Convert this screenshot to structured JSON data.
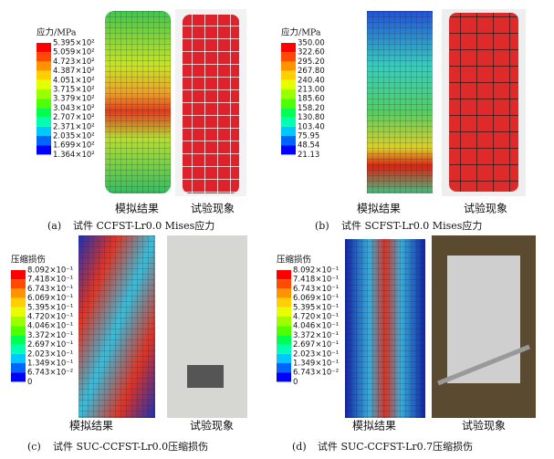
{
  "panels": [
    {
      "legend_title": "应力/MPa",
      "legend_labels": [
        "5.395×10²",
        "5.059×10²",
        "4.723×10²",
        "4.387×10²",
        "4.051×10²",
        "3.715×10²",
        "3.379×10²",
        "3.043×10²",
        "2.707×10²",
        "2.371×10²",
        "2.035×10²",
        "1.699×10²",
        "1.364×10²"
      ],
      "left_label": "模拟结果",
      "right_label": "试验现象",
      "caption_tag": "(a)",
      "caption": "试件 CCFST-Lr0.0 Mises应力"
    },
    {
      "legend_title": "应力/MPa",
      "legend_labels": [
        "350.00",
        "322.60",
        "295.20",
        "267.80",
        "240.40",
        "213.00",
        "185.60",
        "158.20",
        "130.80",
        "103.40",
        "75.95",
        "48.54",
        "21.13"
      ],
      "left_label": "模拟结果",
      "right_label": "试验现象",
      "caption_tag": "(b)",
      "caption": "试件 SCFST-Lr0.0 Mises应力"
    },
    {
      "legend_title": "压缩损伤",
      "legend_labels": [
        "8.092×10⁻¹",
        "7.418×10⁻¹",
        "6.743×10⁻¹",
        "6.069×10⁻¹",
        "5.395×10⁻¹",
        "4.720×10⁻¹",
        "4.046×10⁻¹",
        "3.372×10⁻¹",
        "2.697×10⁻¹",
        "2.023×10⁻¹",
        "1.349×10⁻¹",
        "6.743×10⁻²",
        "0"
      ],
      "left_label": "模拟结果",
      "right_label": "试验现象",
      "caption_tag": "(c)",
      "caption": "试件 SUC-CCFST-Lr0.0压缩损伤"
    },
    {
      "legend_title": "压缩损伤",
      "legend_labels": [
        "8.092×10⁻¹",
        "7.418×10⁻¹",
        "6.743×10⁻¹",
        "6.069×10⁻¹",
        "5.395×10⁻¹",
        "4.720×10⁻¹",
        "4.046×10⁻¹",
        "3.372×10⁻¹",
        "2.697×10⁻¹",
        "2.023×10⁻¹",
        "1.349×10⁻¹",
        "6.743×10⁻²",
        "0"
      ],
      "left_label": "模拟结果",
      "right_label": "试验现象",
      "caption_tag": "(d)",
      "caption": "试件 SUC-CCFST-Lr0.7压缩损伤"
    }
  ]
}
